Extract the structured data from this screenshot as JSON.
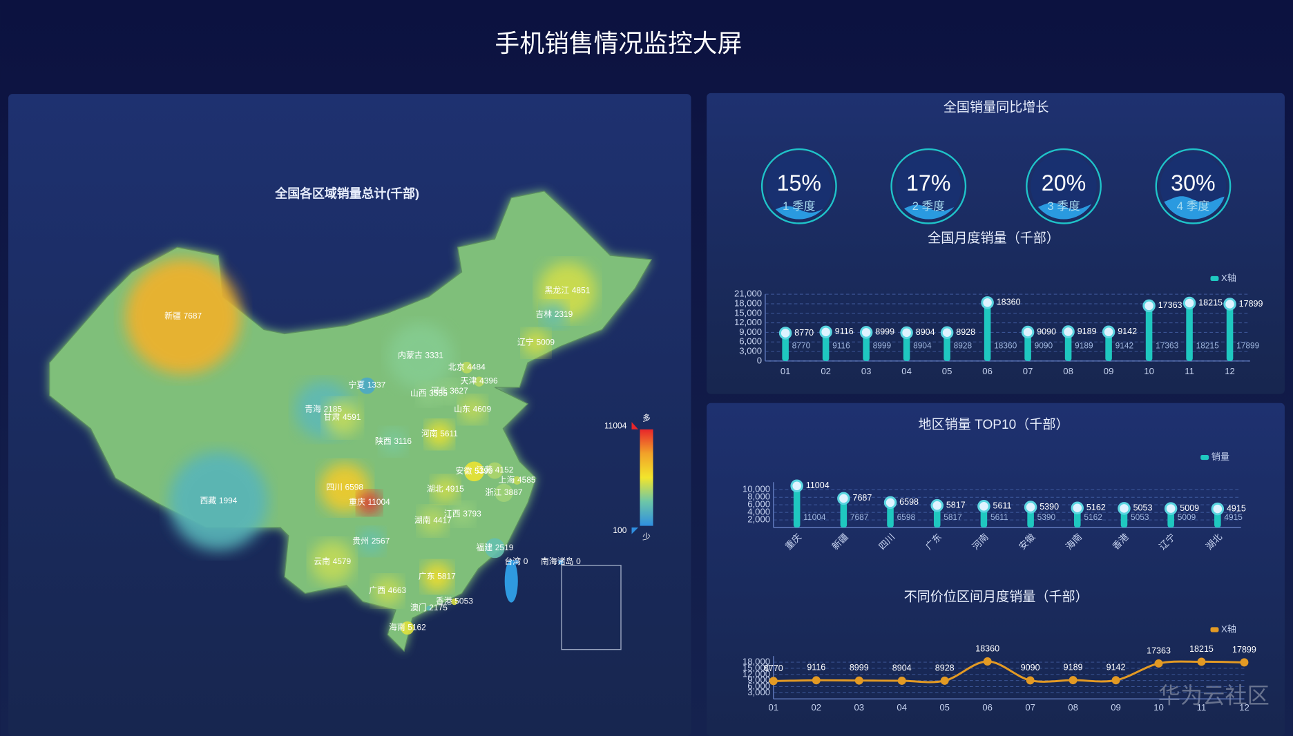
{
  "title": "手机销售情况监控大屏",
  "watermark": "华为云社区",
  "chart_data": [
    {
      "type": "map",
      "title": "全国各区域销量总计(千部)",
      "regions": [
        {
          "name": "新疆",
          "value": 7687
        },
        {
          "name": "西藏",
          "value": 1994
        },
        {
          "name": "青海",
          "value": 2185
        },
        {
          "name": "甘肃",
          "value": 4591
        },
        {
          "name": "宁夏",
          "value": 1337
        },
        {
          "name": "内蒙古",
          "value": 3331
        },
        {
          "name": "黑龙江",
          "value": 4851
        },
        {
          "name": "吉林",
          "value": 2319
        },
        {
          "name": "辽宁",
          "value": 5009
        },
        {
          "name": "北京",
          "value": 4484
        },
        {
          "name": "天津",
          "value": 4396
        },
        {
          "name": "河北",
          "value": 3627
        },
        {
          "name": "山西",
          "value": 3555
        },
        {
          "name": "山东",
          "value": 4609
        },
        {
          "name": "陕西",
          "value": 3116
        },
        {
          "name": "河南",
          "value": 5611
        },
        {
          "name": "四川",
          "value": 6598
        },
        {
          "name": "重庆",
          "value": 11004
        },
        {
          "name": "湖北",
          "value": 4915
        },
        {
          "name": "安徽",
          "value": 5390
        },
        {
          "name": "江苏",
          "value": 4152
        },
        {
          "name": "上海",
          "value": 4585
        },
        {
          "name": "浙江",
          "value": 3887
        },
        {
          "name": "湖南",
          "value": 4417
        },
        {
          "name": "江西",
          "value": 3793
        },
        {
          "name": "贵州",
          "value": 2567
        },
        {
          "name": "云南",
          "value": 4579
        },
        {
          "name": "广西",
          "value": 4663
        },
        {
          "name": "广东",
          "value": 5817
        },
        {
          "name": "福建",
          "value": 2519
        },
        {
          "name": "台湾",
          "value": 0
        },
        {
          "name": "香港",
          "value": 5053
        },
        {
          "name": "澳门",
          "value": 2175
        },
        {
          "name": "海南",
          "value": 5162
        },
        {
          "name": "南海诸岛",
          "value": 0
        }
      ],
      "visual_map": {
        "range": [
          100,
          11004
        ],
        "high_text": "多",
        "low_text": "少",
        "colors": [
          "#2f8fe0",
          "#6cc6a8",
          "#f2e52c",
          "#f2a229",
          "#e8262a"
        ]
      }
    },
    {
      "type": "gauge",
      "title": "全国销量同比增长",
      "categories": [
        "1 季度",
        "2 季度",
        "3 季度",
        "4 季度"
      ],
      "values": [
        15,
        17,
        20,
        30
      ],
      "value_labels": [
        "15%",
        "17%",
        "20%",
        "30%"
      ],
      "ylim": [
        0,
        100
      ],
      "color": "#1fc3c9"
    },
    {
      "type": "pictorial_bar",
      "title": "全国月度销量（千部）",
      "categories": [
        "01",
        "02",
        "03",
        "04",
        "05",
        "06",
        "07",
        "08",
        "09",
        "10",
        "11",
        "12"
      ],
      "series": [
        {
          "name": "X轴",
          "color": "#1fc8c0",
          "values": [
            8770,
            9116,
            8999,
            8904,
            8928,
            18360,
            9090,
            9189,
            9142,
            17363,
            18215,
            17899
          ]
        }
      ],
      "ylim": [
        0,
        21000
      ],
      "yticks": [
        0,
        {
          "value": 3000,
          "label": "3,000"
        },
        {
          "value": 6000,
          "label": "6,000"
        },
        {
          "value": 9000,
          "label": "9,000"
        },
        {
          "value": 12000,
          "label": "12,000"
        },
        {
          "value": 15000,
          "label": "15,000"
        },
        {
          "value": 18000,
          "label": "18,000"
        },
        {
          "value": 21000,
          "label": "21,000"
        }
      ],
      "grid": true,
      "legend": "top-right"
    },
    {
      "type": "pictorial_bar",
      "title": "地区销量 TOP10（千部）",
      "categories": [
        "重庆",
        "新疆",
        "四川",
        "广东",
        "河南",
        "安徽",
        "海南",
        "香港",
        "辽宁",
        "湖北"
      ],
      "series": [
        {
          "name": "销量",
          "color": "#1fc8c0",
          "values": [
            11004,
            7687,
            6598,
            5817,
            5611,
            5390,
            5162,
            5053,
            5009,
            4915
          ]
        }
      ],
      "ylim": [
        0,
        12000
      ],
      "yticks": [
        {
          "value": 2000,
          "label": "2,000"
        },
        {
          "value": 4000,
          "label": "4,000"
        },
        {
          "value": 6000,
          "label": "6,000"
        },
        {
          "value": 8000,
          "label": "8,000"
        },
        {
          "value": 10000,
          "label": "10,000"
        }
      ],
      "grid": true,
      "legend": "top-right",
      "x_label_rotation": -45
    },
    {
      "type": "line",
      "title": "不同价位区间月度销量（千部）",
      "categories": [
        "01",
        "02",
        "03",
        "04",
        "05",
        "06",
        "07",
        "08",
        "09",
        "10",
        "11",
        "12"
      ],
      "series": [
        {
          "name": "X轴",
          "color": "#e39a24",
          "values": [
            8770,
            9116,
            8999,
            8904,
            8928,
            18360,
            9090,
            9189,
            9142,
            17363,
            18215,
            17899
          ]
        }
      ],
      "ylim": [
        0,
        21000
      ],
      "yticks": [
        {
          "value": 3000,
          "label": "3,000"
        },
        {
          "value": 6000,
          "label": "6,000"
        },
        {
          "value": 9000,
          "label": "9,000"
        },
        {
          "value": 12000,
          "label": "12,000"
        },
        {
          "value": 15000,
          "label": "15,000"
        },
        {
          "value": 18000,
          "label": "18,000"
        }
      ],
      "grid": true,
      "legend": "top-right",
      "smooth": true
    }
  ]
}
